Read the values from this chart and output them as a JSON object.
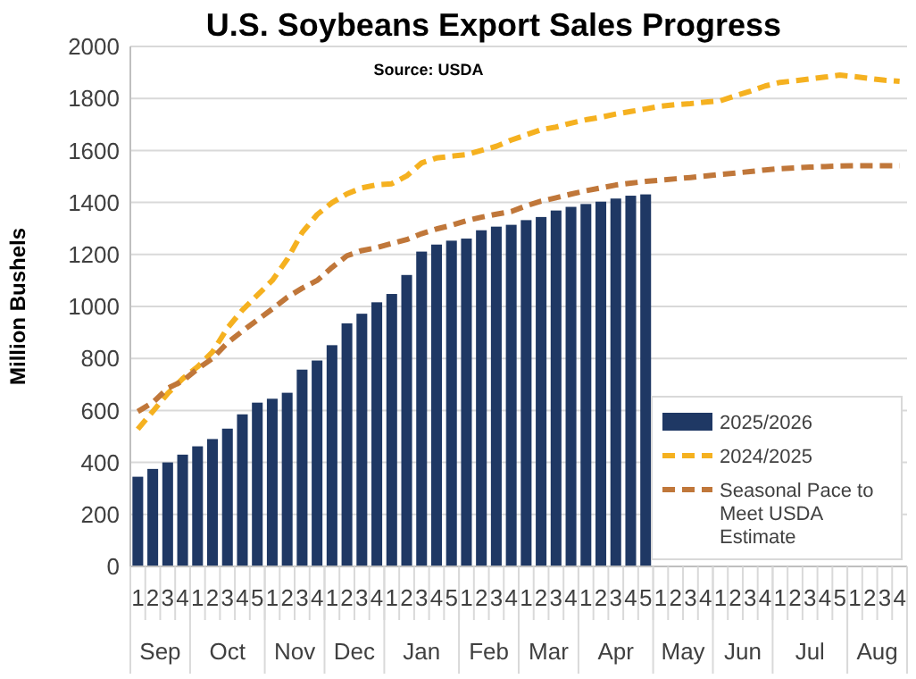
{
  "chart_data": {
    "type": "bar",
    "title": "U.S. Soybeans Export Sales Progress",
    "subtitle": "Source: USDA",
    "ylabel": "Million Bushels",
    "categories": [
      "1",
      "2",
      "3",
      "4",
      "1",
      "2",
      "3",
      "4",
      "5",
      "1",
      "2",
      "3",
      "4",
      "1",
      "2",
      "3",
      "4",
      "1",
      "2",
      "3",
      "4",
      "5",
      "1",
      "2",
      "3",
      "4",
      "1",
      "2",
      "3",
      "4",
      "1",
      "2",
      "3",
      "4",
      "5",
      "1",
      "2",
      "3",
      "4",
      "1",
      "2",
      "3",
      "4",
      "1",
      "2",
      "3",
      "4",
      "5",
      "1",
      "2",
      "3",
      "4"
    ],
    "annotations": [
      "Sep",
      "Oct",
      "Nov",
      "Dec",
      "Jan",
      "Feb",
      "Mar",
      "Apr",
      "May",
      "Jun",
      "Jul",
      "Aug"
    ],
    "ylim": [
      0,
      2000
    ],
    "yticks": [
      0,
      200,
      400,
      600,
      800,
      1000,
      1200,
      1400,
      1600,
      1800,
      2000
    ],
    "grid": "y",
    "legend": "bottom right",
    "series": [
      {
        "name": "2025/2026",
        "color": "#1f3864",
        "values": [
          345,
          375,
          400,
          430,
          462,
          490,
          530,
          585,
          630,
          645,
          668,
          757,
          792,
          851,
          935,
          972,
          1016,
          1048,
          1121,
          1211,
          1238,
          1253,
          1261,
          1293,
          1307,
          1314,
          1332,
          1344,
          1369,
          1383,
          1394,
          1403,
          1415,
          1426,
          1431,
          null,
          null,
          null,
          null,
          null,
          null,
          null,
          null,
          null,
          null,
          null,
          null,
          null,
          null,
          null,
          null,
          null
        ]
      },
      {
        "name": "2024/2025",
        "type": "line",
        "line_style": "dashed",
        "color": "#f5b120",
        "values": [
          528,
          596,
          665,
          722,
          768,
          825,
          917,
          986,
          1043,
          1100,
          1181,
          1284,
          1353,
          1399,
          1433,
          1456,
          1468,
          1472,
          1502,
          1552,
          1571,
          1578,
          1584,
          1600,
          1616,
          1640,
          1660,
          1680,
          1690,
          1705,
          1718,
          1728,
          1740,
          1750,
          1760,
          1770,
          1776,
          1780,
          1786,
          1791,
          1810,
          1828,
          1848,
          1862,
          1868,
          1875,
          1882,
          1890,
          1884,
          1877,
          1870,
          1866
        ]
      },
      {
        "name": "Seasonal Pace to Meet USDA Estimate",
        "type": "line",
        "line_style": "dashed",
        "color": "#c0773a",
        "values": [
          596,
          630,
          685,
          713,
          760,
          800,
          860,
          905,
          948,
          990,
          1035,
          1070,
          1100,
          1150,
          1195,
          1215,
          1226,
          1242,
          1257,
          1280,
          1298,
          1312,
          1330,
          1343,
          1355,
          1365,
          1387,
          1405,
          1418,
          1432,
          1445,
          1456,
          1467,
          1474,
          1481,
          1486,
          1491,
          1496,
          1502,
          1508,
          1513,
          1519,
          1525,
          1530,
          1533,
          1536,
          1538,
          1540,
          1541,
          1541,
          1541,
          1541
        ]
      }
    ]
  }
}
